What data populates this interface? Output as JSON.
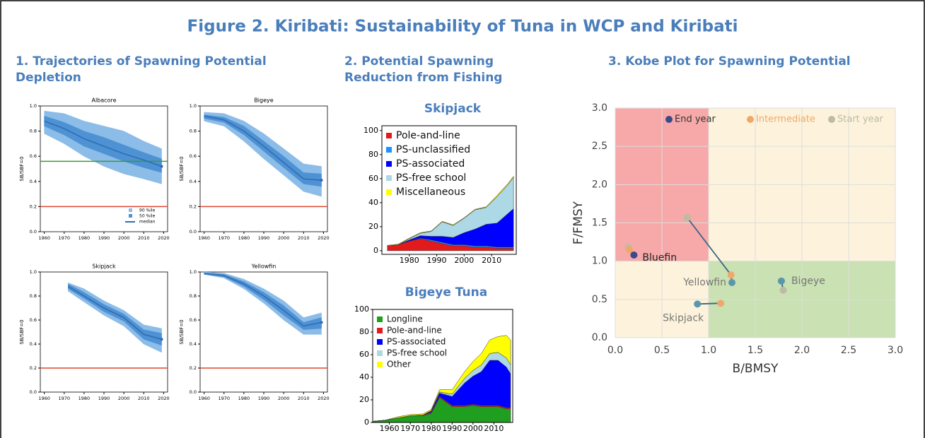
{
  "title": "Figure 2. Kiribati: Sustainability of Tuna in WCP and Kiribati",
  "panels": [
    "1. Trajectories of Spawning Potential Depletion",
    "2. Potential Spawning Reduction from Fishing",
    "3. Kobe Plot for Spawning Potential"
  ],
  "chart_data": [
    {
      "type": "line",
      "title": "Albacore",
      "ylabel": "SB/SBF=0",
      "legend": "lower right",
      "x": [
        1960,
        1970,
        1980,
        1990,
        2000,
        2010,
        2019
      ],
      "series": [
        {
          "name": "median",
          "color": "#2e6db4",
          "values": [
            0.88,
            0.82,
            0.74,
            0.68,
            0.62,
            0.57,
            0.52
          ]
        }
      ],
      "bands": [
        {
          "name": "90 %ile",
          "color": "#8cbce8",
          "lower": [
            0.78,
            0.7,
            0.6,
            0.52,
            0.46,
            0.42,
            0.38
          ],
          "upper": [
            0.96,
            0.94,
            0.88,
            0.84,
            0.8,
            0.72,
            0.66
          ]
        },
        {
          "name": "50 %ile",
          "color": "#4f92d4",
          "lower": [
            0.84,
            0.77,
            0.68,
            0.62,
            0.56,
            0.51,
            0.47
          ],
          "upper": [
            0.92,
            0.87,
            0.8,
            0.75,
            0.69,
            0.63,
            0.58
          ]
        }
      ],
      "hlines": [
        {
          "value": 0.56,
          "color": "#3a9a3a"
        },
        {
          "value": 0.2,
          "color": "#e0452f"
        }
      ],
      "xlim": [
        1958,
        2022
      ],
      "ylim": [
        0,
        1
      ],
      "xticks": [
        1960,
        1970,
        1980,
        1990,
        2000,
        2010,
        2020
      ],
      "yticks": [
        {
          "value": 0,
          "label": "0.0"
        },
        0.2,
        0.4,
        0.6,
        0.8,
        {
          "value": 1,
          "label": "1.0"
        }
      ]
    },
    {
      "type": "line",
      "title": "Bigeye",
      "ylabel": "SB/SBF=0",
      "x": [
        1960,
        1970,
        1980,
        1990,
        2000,
        2010,
        2019
      ],
      "series": [
        {
          "name": "median",
          "color": "#2e6db4",
          "values": [
            0.92,
            0.89,
            0.8,
            0.68,
            0.55,
            0.42,
            0.41
          ]
        }
      ],
      "bands": [
        {
          "name": "90 %ile",
          "color": "#8cbce8",
          "lower": [
            0.88,
            0.84,
            0.72,
            0.58,
            0.45,
            0.32,
            0.28
          ],
          "upper": [
            0.95,
            0.94,
            0.88,
            0.78,
            0.66,
            0.54,
            0.52
          ]
        },
        {
          "name": "50 %ile",
          "color": "#4f92d4",
          "lower": [
            0.9,
            0.87,
            0.77,
            0.64,
            0.51,
            0.38,
            0.36
          ],
          "upper": [
            0.93,
            0.91,
            0.84,
            0.72,
            0.6,
            0.47,
            0.46
          ]
        }
      ],
      "hlines": [
        {
          "value": 0.2,
          "color": "#e0452f"
        }
      ],
      "xlim": [
        1958,
        2022
      ],
      "ylim": [
        0,
        1
      ],
      "xticks": [
        1960,
        1970,
        1980,
        1990,
        2000,
        2010,
        2020
      ],
      "yticks": [
        {
          "value": 0,
          "label": "0.0"
        },
        0.2,
        0.4,
        0.6,
        0.8,
        {
          "value": 1,
          "label": "1.0"
        }
      ]
    },
    {
      "type": "line",
      "title": "Skipjack",
      "ylabel": "SB/SBF=0",
      "x": [
        1972,
        1980,
        1990,
        2000,
        2010,
        2019
      ],
      "series": [
        {
          "name": "median",
          "color": "#2e6db4",
          "values": [
            0.88,
            0.8,
            0.7,
            0.62,
            0.48,
            0.44
          ]
        }
      ],
      "bands": [
        {
          "name": "90 %ile",
          "color": "#8cbce8",
          "lower": [
            0.84,
            0.75,
            0.64,
            0.55,
            0.4,
            0.33
          ],
          "upper": [
            0.91,
            0.86,
            0.76,
            0.68,
            0.56,
            0.53
          ]
        },
        {
          "name": "50 %ile",
          "color": "#4f92d4",
          "lower": [
            0.86,
            0.78,
            0.67,
            0.59,
            0.44,
            0.39
          ],
          "upper": [
            0.9,
            0.83,
            0.73,
            0.65,
            0.52,
            0.49
          ]
        }
      ],
      "hlines": [
        {
          "value": 0.2,
          "color": "#e0452f"
        }
      ],
      "xlim": [
        1958,
        2022
      ],
      "ylim": [
        0,
        1
      ],
      "xticks": [
        1960,
        1970,
        1980,
        1990,
        2000,
        2010,
        2020
      ],
      "yticks": [
        {
          "value": 0,
          "label": "0.0"
        },
        0.2,
        0.4,
        0.6,
        0.8,
        {
          "value": 1,
          "label": "1.0"
        }
      ]
    },
    {
      "type": "line",
      "title": "Yellowfin",
      "ylabel": "SB/SBF=0",
      "x": [
        1960,
        1970,
        1980,
        1990,
        2000,
        2010,
        2019
      ],
      "series": [
        {
          "name": "median",
          "color": "#2e6db4",
          "values": [
            0.99,
            0.97,
            0.9,
            0.8,
            0.68,
            0.55,
            0.58
          ]
        }
      ],
      "bands": [
        {
          "name": "90 %ile",
          "color": "#8cbce8",
          "lower": [
            0.98,
            0.95,
            0.86,
            0.74,
            0.6,
            0.48,
            0.48
          ],
          "upper": [
            1,
            0.99,
            0.94,
            0.86,
            0.76,
            0.62,
            0.66
          ]
        },
        {
          "name": "50 %ile",
          "color": "#4f92d4",
          "lower": [
            0.98,
            0.96,
            0.88,
            0.77,
            0.64,
            0.52,
            0.53
          ],
          "upper": [
            0.99,
            0.98,
            0.92,
            0.83,
            0.72,
            0.58,
            0.62
          ]
        }
      ],
      "hlines": [
        {
          "value": 0.2,
          "color": "#e0452f"
        }
      ],
      "xlim": [
        1958,
        2022
      ],
      "ylim": [
        0,
        1
      ],
      "xticks": [
        1960,
        1970,
        1980,
        1990,
        2000,
        2010,
        2020
      ],
      "yticks": [
        {
          "value": 0,
          "label": "0.0"
        },
        0.2,
        0.4,
        0.6,
        0.8,
        {
          "value": 1,
          "label": "1.0"
        }
      ]
    },
    {
      "type": "area",
      "title": "Skipjack",
      "legend": "upper left",
      "x": [
        1972,
        1976,
        1980,
        1984,
        1988,
        1992,
        1996,
        2000,
        2004,
        2008,
        2012,
        2016,
        2018
      ],
      "series": [
        {
          "name": "Pole-and-line",
          "color": "#e31a1c",
          "values": [
            4,
            5,
            8,
            10,
            8,
            6,
            4,
            4,
            3,
            3,
            2,
            2,
            2
          ]
        },
        {
          "name": "PS-unclassified",
          "color": "#1e90ff",
          "values": [
            0,
            0,
            0,
            0.5,
            1,
            1,
            1,
            1,
            1,
            1,
            1,
            1,
            1
          ]
        },
        {
          "name": "PS-associated",
          "color": "#0000ff",
          "values": [
            0,
            0,
            1,
            2,
            3,
            5,
            6,
            10,
            14,
            18,
            20,
            28,
            32
          ]
        },
        {
          "name": "PS-free school",
          "color": "#add8e6",
          "values": [
            0,
            0,
            1,
            2,
            4,
            12,
            10,
            12,
            16,
            14,
            22,
            24,
            26
          ]
        },
        {
          "name": "Miscellaneous",
          "color": "#ffff00",
          "values": [
            0.5,
            0.5,
            0.5,
            0.5,
            0.5,
            0.5,
            0.5,
            0.5,
            0.5,
            0.5,
            1,
            1,
            1
          ]
        }
      ],
      "xlim": [
        1970,
        2019
      ],
      "ylim": [
        -3,
        104
      ],
      "xticks": [
        1980,
        1990,
        2000,
        2010
      ],
      "yticks": [
        0,
        20,
        40,
        60,
        80,
        100
      ]
    },
    {
      "type": "area",
      "title": "Bigeye Tuna",
      "legend": "upper left",
      "x": [
        1952,
        1958,
        1964,
        1970,
        1976,
        1980,
        1984,
        1990,
        1996,
        2000,
        2004,
        2008,
        2012,
        2016,
        2018
      ],
      "series": [
        {
          "name": "Longline",
          "color": "#1f9e1f",
          "values": [
            1,
            2,
            4,
            6,
            6,
            8,
            22,
            14,
            14,
            15,
            14,
            14,
            14,
            12,
            12
          ]
        },
        {
          "name": "Pole-and-line",
          "color": "#e31a1c",
          "values": [
            0,
            0,
            0,
            0,
            0.5,
            1,
            1,
            1,
            1,
            1,
            1,
            1,
            1,
            1,
            1
          ]
        },
        {
          "name": "PS-associated",
          "color": "#0000ff",
          "values": [
            0,
            0,
            0,
            0,
            0,
            1,
            3,
            8,
            20,
            25,
            30,
            40,
            40,
            36,
            30
          ]
        },
        {
          "name": "PS-free school",
          "color": "#add8e6",
          "values": [
            0,
            0,
            0,
            0,
            0,
            0.5,
            1,
            2,
            4,
            5,
            6,
            6,
            7,
            8,
            8
          ]
        },
        {
          "name": "Other",
          "color": "#ffff00",
          "values": [
            0,
            0,
            1,
            1,
            1,
            1,
            2,
            4,
            6,
            8,
            10,
            12,
            14,
            20,
            22
          ]
        }
      ],
      "xlim": [
        1952,
        2019
      ],
      "ylim": [
        0,
        100
      ],
      "xticks": [
        1960,
        1970,
        1980,
        1990,
        2000,
        2010
      ],
      "yticks": [
        0,
        20,
        40,
        60,
        80,
        100
      ]
    },
    {
      "type": "scatter",
      "xlabel": "B/BMSY",
      "ylabel": "F/FMSY",
      "legend": "top",
      "stocks": [
        "Bluefin",
        "Yellowfin",
        "Bigeye",
        "Skipjack"
      ],
      "series": [
        {
          "name": "Start year",
          "color": "#bdbba3",
          "x": [
            0.14,
            0.77,
            1.8,
            null
          ],
          "values": [
            1.18,
            1.57,
            0.62,
            null
          ]
        },
        {
          "name": "Intermediate",
          "color": "#f0a86a",
          "x": [
            0.15,
            1.24,
            null,
            1.13
          ],
          "values": [
            1.15,
            0.82,
            null,
            0.45
          ]
        },
        {
          "name": "End year",
          "color": "#3c4a8a",
          "x": [
            0.2,
            1.25,
            1.78,
            0.88
          ],
          "values": [
            1.08,
            0.72,
            0.74,
            0.44
          ]
        }
      ],
      "xlim": [
        0,
        3
      ],
      "ylim": [
        0,
        3
      ],
      "xticks": [
        {
          "value": 0,
          "label": "0.0"
        },
        0.5,
        {
          "value": 1,
          "label": "1.0"
        },
        1.5,
        {
          "value": 2,
          "label": "2.0"
        },
        2.5,
        {
          "value": 3,
          "label": "3.0"
        }
      ],
      "yticks": [
        {
          "value": 0,
          "label": "0.0"
        },
        0.5,
        {
          "value": 1,
          "label": "1.0"
        },
        1.5,
        {
          "value": 2,
          "label": "2.0"
        },
        2.5,
        {
          "value": 3,
          "label": "3.0"
        }
      ],
      "grid": true
    }
  ]
}
